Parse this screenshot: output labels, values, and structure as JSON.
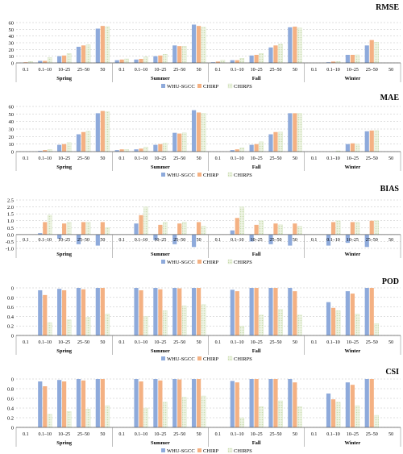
{
  "colors": {
    "whu": "#8eaadb",
    "chirp": "#f4b183",
    "chirps": "#c9dcb0",
    "grid": "#bfbfbf",
    "axis": "#595959"
  },
  "chart_data": [
    {
      "type": "bar",
      "title": "RMSE",
      "seasons": [
        "Spring",
        "Summer",
        "Fall",
        "Winter"
      ],
      "categories": [
        "0.1",
        "0.1–10",
        "10–25",
        "25–50",
        "50"
      ],
      "ylim": [
        0,
        60
      ],
      "yticks": [
        0,
        10,
        20,
        30,
        40,
        50,
        60
      ],
      "grid": true,
      "legend": "bottom",
      "series": [
        {
          "name": "WHU-SGCC",
          "values": [
            [
              0,
              3,
              10,
              24,
              51
            ],
            [
              4,
              5,
              10,
              26,
              57
            ],
            [
              1,
              4,
              11,
              23,
              53
            ],
            [
              0,
              1,
              12,
              26,
              0
            ]
          ]
        },
        {
          "name": "CHIRP",
          "values": [
            [
              1,
              3,
              11,
              26,
              55
            ],
            [
              5,
              6,
              11,
              25,
              55
            ],
            [
              2,
              4,
              12,
              26,
              54
            ],
            [
              0,
              2,
              12,
              34,
              0
            ]
          ]
        },
        {
          "name": "CHIRPS",
          "values": [
            [
              2,
              8,
              14,
              27,
              54
            ],
            [
              6,
              9,
              13,
              25,
              53
            ],
            [
              4,
              7,
              14,
              28,
              52
            ],
            [
              0,
              2,
              12,
              31,
              0
            ]
          ]
        }
      ]
    },
    {
      "type": "bar",
      "title": "MAE",
      "seasons": [
        "Spring",
        "Summer",
        "Fall",
        "Winter"
      ],
      "categories": [
        "0.1",
        "0.1–10",
        "10–25",
        "25–50",
        "50"
      ],
      "ylim": [
        0,
        60
      ],
      "yticks": [
        0,
        10,
        20,
        30,
        40,
        50,
        60
      ],
      "grid": true,
      "legend": "bottom",
      "series": [
        {
          "name": "WHU-SGCC",
          "values": [
            [
              0,
              1,
              9,
              23,
              51
            ],
            [
              2,
              3,
              9,
              25,
              55
            ],
            [
              0,
              2,
              9,
              23,
              51
            ],
            [
              0,
              0,
              10,
              27,
              0
            ]
          ]
        },
        {
          "name": "CHIRP",
          "values": [
            [
              0,
              2,
              10,
              26,
              54
            ],
            [
              3,
              4,
              10,
              24,
              52
            ],
            [
              0,
              3,
              10,
              26,
              51
            ],
            [
              0,
              0,
              11,
              28,
              0
            ]
          ]
        },
        {
          "name": "CHIRPS",
          "values": [
            [
              0,
              3,
              12,
              27,
              53
            ],
            [
              3,
              6,
              11,
              25,
              51
            ],
            [
              0,
              5,
              13,
              26,
              51
            ],
            [
              0,
              1,
              10,
              28,
              0
            ]
          ]
        }
      ]
    },
    {
      "type": "bar",
      "title": "BIAS",
      "seasons": [
        "Spring",
        "Summer",
        "Fall",
        "Winter"
      ],
      "categories": [
        "0.1",
        "0.1–10",
        "10–25",
        "25–50",
        "50"
      ],
      "ylim": [
        -1.0,
        2.5
      ],
      "yticks": [
        -1.0,
        -0.5,
        0,
        0.5,
        1.0,
        1.5,
        2.0,
        2.5
      ],
      "grid": true,
      "legend": "bottom",
      "series": [
        {
          "name": "WHU-SGCC",
          "values": [
            [
              0,
              0.1,
              -0.3,
              -0.7,
              -0.8
            ],
            [
              0,
              0.8,
              -0.4,
              -0.7,
              -0.9
            ],
            [
              0,
              0.3,
              -0.5,
              -0.7,
              -0.8
            ],
            [
              0,
              -0.8,
              -0.6,
              -0.9,
              0
            ]
          ]
        },
        {
          "name": "CHIRP",
          "values": [
            [
              0,
              0.9,
              0.8,
              0.9,
              0.9
            ],
            [
              0,
              1.4,
              0.7,
              0.8,
              0.9
            ],
            [
              0,
              1.2,
              0.7,
              0.8,
              0.8
            ],
            [
              0,
              0.9,
              0.9,
              1.0,
              0
            ]
          ]
        },
        {
          "name": "CHIRPS",
          "values": [
            [
              0,
              1.4,
              0.9,
              0.9,
              0.5
            ],
            [
              0,
              2.0,
              0.9,
              0.9,
              0.6
            ],
            [
              0,
              2.0,
              1.0,
              0.7,
              0.6
            ],
            [
              0,
              1.0,
              0.9,
              1.0,
              0
            ]
          ]
        }
      ]
    },
    {
      "type": "bar",
      "title": "POD",
      "seasons": [
        "Spring",
        "Summer",
        "Fall",
        "Winter"
      ],
      "categories": [
        "0.1",
        "0.1–10",
        "10–25",
        "25–50",
        "50"
      ],
      "ylim": [
        0,
        1.0
      ],
      "yticks": [
        0,
        0.2,
        0.4,
        0.6,
        0.8,
        1.0
      ],
      "grid": true,
      "legend": "bottom",
      "series": [
        {
          "name": "WHU-SGCC",
          "values": [
            [
              0,
              0.95,
              0.98,
              1.0,
              1.0
            ],
            [
              0,
              1.0,
              1.0,
              1.0,
              1.0
            ],
            [
              0,
              0.96,
              1.0,
              1.0,
              1.0
            ],
            [
              0,
              0.7,
              0.93,
              1.0,
              0
            ]
          ]
        },
        {
          "name": "CHIRP",
          "values": [
            [
              0,
              0.85,
              0.95,
              0.97,
              1.0
            ],
            [
              0,
              0.95,
              0.97,
              0.99,
              1.0
            ],
            [
              0,
              0.93,
              1.0,
              1.0,
              0.93
            ],
            [
              0,
              0.58,
              0.88,
              1.0,
              0
            ]
          ]
        },
        {
          "name": "CHIRPS",
          "values": [
            [
              0,
              0.27,
              0.33,
              0.38,
              0.45
            ],
            [
              0,
              0.4,
              0.52,
              0.62,
              0.65
            ],
            [
              0,
              0.2,
              0.43,
              0.55,
              0.43
            ],
            [
              0,
              0.52,
              0.45,
              0.25,
              0
            ]
          ]
        }
      ]
    },
    {
      "type": "bar",
      "title": "CSI",
      "seasons": [
        "Spring",
        "Summer",
        "Fall",
        "Winter"
      ],
      "categories": [
        "0.1",
        "0.1–10",
        "10–25",
        "25–50",
        "50"
      ],
      "ylim": [
        0,
        1.0
      ],
      "yticks": [
        0,
        0.2,
        0.4,
        0.6,
        0.8,
        1.0
      ],
      "grid": true,
      "legend": "bottom",
      "series": [
        {
          "name": "WHU-SGCC",
          "values": [
            [
              0,
              0.95,
              0.98,
              1.0,
              1.0
            ],
            [
              0,
              1.0,
              1.0,
              1.0,
              1.0
            ],
            [
              0,
              0.96,
              1.0,
              1.0,
              1.0
            ],
            [
              0,
              0.7,
              0.93,
              1.0,
              0
            ]
          ]
        },
        {
          "name": "CHIRP",
          "values": [
            [
              0,
              0.85,
              0.95,
              0.97,
              1.0
            ],
            [
              0,
              0.95,
              0.97,
              0.99,
              1.0
            ],
            [
              0,
              0.93,
              1.0,
              1.0,
              0.93
            ],
            [
              0,
              0.58,
              0.88,
              1.0,
              0
            ]
          ]
        },
        {
          "name": "CHIRPS",
          "values": [
            [
              0,
              0.27,
              0.33,
              0.38,
              0.45
            ],
            [
              0,
              0.4,
              0.52,
              0.62,
              0.65
            ],
            [
              0,
              0.2,
              0.43,
              0.55,
              0.43
            ],
            [
              0,
              0.52,
              0.45,
              0.25,
              0
            ]
          ]
        }
      ]
    }
  ]
}
